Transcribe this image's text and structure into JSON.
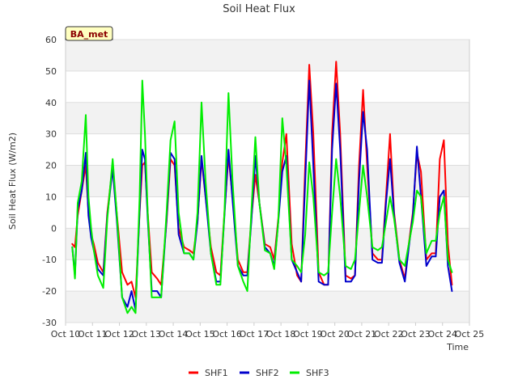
{
  "chart_data": {
    "type": "line",
    "title": "Soil Heat Flux",
    "xlabel": "Time",
    "ylabel": "Soil Heat Flux (W/m2)",
    "site_label": "BA_met",
    "xlim": [
      10,
      25
    ],
    "ylim": [
      -30,
      60
    ],
    "x_ticks": [
      10,
      11,
      12,
      13,
      14,
      15,
      16,
      17,
      18,
      19,
      20,
      21,
      22,
      23,
      24,
      25
    ],
    "x_tick_labels": [
      "Oct 10",
      "Oct 11",
      "Oct 12",
      "Oct 13",
      "Oct 14",
      "Oct 15",
      "Oct 16",
      "Oct 17",
      "Oct 18",
      "Oct 19",
      "Oct 20",
      "Oct 21",
      "Oct 22",
      "Oct 23",
      "Oct 24",
      "Oct 25"
    ],
    "y_ticks": [
      -30,
      -20,
      -10,
      0,
      10,
      20,
      30,
      40,
      50,
      60
    ],
    "legend_position": "bottom-center",
    "series": [
      {
        "name": "SHF1",
        "color": "#ff0000",
        "x": [
          10.25,
          10.35,
          10.45,
          10.6,
          10.75,
          10.85,
          10.95,
          11.05,
          11.2,
          11.4,
          11.55,
          11.75,
          11.9,
          12.1,
          12.3,
          12.45,
          12.6,
          12.75,
          12.85,
          12.95,
          13.05,
          13.2,
          13.4,
          13.55,
          13.75,
          13.9,
          14.05,
          14.2,
          14.4,
          14.6,
          14.75,
          14.9,
          15.05,
          15.2,
          15.4,
          15.6,
          15.75,
          15.9,
          16.05,
          16.2,
          16.4,
          16.6,
          16.75,
          16.9,
          17.05,
          17.2,
          17.4,
          17.6,
          17.75,
          17.9,
          18.05,
          18.2,
          18.4,
          18.6,
          18.75,
          18.9,
          19.05,
          19.2,
          19.4,
          19.6,
          19.75,
          19.9,
          20.05,
          20.2,
          20.4,
          20.6,
          20.75,
          20.9,
          21.05,
          21.2,
          21.4,
          21.6,
          21.75,
          21.9,
          22.05,
          22.2,
          22.4,
          22.6,
          22.75,
          22.9,
          23.05,
          23.2,
          23.4,
          23.6,
          23.75,
          23.9,
          24.05,
          24.2,
          24.35
        ],
        "y": [
          -5,
          -6,
          4,
          12,
          20,
          5,
          -2,
          -5,
          -11,
          -14,
          5,
          20,
          5,
          -14,
          -18,
          -17,
          -22,
          5,
          20,
          21,
          5,
          -14,
          -16,
          -18,
          2,
          22,
          20,
          0,
          -6,
          -7,
          -8,
          2,
          22,
          10,
          -6,
          -14,
          -15,
          5,
          23,
          10,
          -10,
          -14,
          -14,
          3,
          17,
          8,
          -5,
          -6,
          -10,
          3,
          21,
          30,
          -5,
          -15,
          -17,
          20,
          52,
          30,
          -14,
          -18,
          -18,
          30,
          53,
          30,
          -15,
          -16,
          -15,
          20,
          44,
          20,
          -8,
          -10,
          -10,
          10,
          30,
          5,
          -10,
          -16,
          -5,
          5,
          24,
          18,
          -10,
          -8,
          -8,
          22,
          28,
          -5,
          -18
        ]
      },
      {
        "name": "SHF2",
        "color": "#0000cc",
        "x": [
          10.25,
          10.35,
          10.45,
          10.6,
          10.75,
          10.85,
          10.95,
          11.05,
          11.2,
          11.4,
          11.55,
          11.75,
          11.9,
          12.1,
          12.3,
          12.45,
          12.6,
          12.75,
          12.85,
          12.95,
          13.05,
          13.2,
          13.4,
          13.55,
          13.75,
          13.9,
          14.05,
          14.2,
          14.4,
          14.6,
          14.75,
          14.9,
          15.05,
          15.2,
          15.4,
          15.6,
          15.75,
          15.9,
          16.05,
          16.2,
          16.4,
          16.6,
          16.75,
          16.9,
          17.05,
          17.2,
          17.4,
          17.6,
          17.75,
          17.9,
          18.05,
          18.2,
          18.4,
          18.6,
          18.75,
          18.9,
          19.05,
          19.2,
          19.4,
          19.6,
          19.75,
          19.9,
          20.05,
          20.2,
          20.4,
          20.6,
          20.75,
          20.9,
          21.05,
          21.2,
          21.4,
          21.6,
          21.75,
          21.9,
          22.05,
          22.2,
          22.4,
          22.6,
          22.75,
          22.9,
          23.05,
          23.2,
          23.4,
          23.6,
          23.75,
          23.9,
          24.05,
          24.2,
          24.35
        ],
        "y": [
          -6,
          -15,
          6,
          12,
          24,
          4,
          -3,
          -7,
          -13,
          -15,
          4,
          19,
          3,
          -22,
          -25,
          -20,
          -26,
          6,
          25,
          22,
          3,
          -20,
          -20,
          -22,
          3,
          24,
          22,
          -2,
          -8,
          -8,
          -10,
          2,
          23,
          10,
          -8,
          -17,
          -17,
          4,
          25,
          9,
          -12,
          -15,
          -15,
          2,
          23,
          8,
          -6,
          -8,
          -12,
          2,
          18,
          23,
          -10,
          -14,
          -17,
          15,
          47,
          20,
          -17,
          -18,
          -18,
          25,
          46,
          25,
          -17,
          -17,
          -15,
          15,
          37,
          25,
          -10,
          -11,
          -11,
          8,
          22,
          4,
          -11,
          -17,
          -6,
          4,
          26,
          10,
          -12,
          -9,
          -9,
          10,
          12,
          -12,
          -20
        ]
      },
      {
        "name": "SHF3",
        "color": "#00ee00",
        "x": [
          10.25,
          10.35,
          10.45,
          10.6,
          10.75,
          10.85,
          10.95,
          11.05,
          11.2,
          11.4,
          11.55,
          11.75,
          11.9,
          12.1,
          12.3,
          12.45,
          12.6,
          12.75,
          12.85,
          12.95,
          13.05,
          13.2,
          13.4,
          13.55,
          13.75,
          13.9,
          14.05,
          14.2,
          14.4,
          14.6,
          14.75,
          14.9,
          15.05,
          15.2,
          15.4,
          15.6,
          15.75,
          15.9,
          16.05,
          16.2,
          16.4,
          16.6,
          16.75,
          16.9,
          17.05,
          17.2,
          17.4,
          17.6,
          17.75,
          17.9,
          18.05,
          18.2,
          18.4,
          18.6,
          18.75,
          18.9,
          19.05,
          19.2,
          19.4,
          19.6,
          19.75,
          19.9,
          20.05,
          20.2,
          20.4,
          20.6,
          20.75,
          20.9,
          21.05,
          21.2,
          21.4,
          21.6,
          21.75,
          21.9,
          22.05,
          22.2,
          22.4,
          22.6,
          22.75,
          22.9,
          23.05,
          23.2,
          23.4,
          23.6,
          23.75,
          23.9,
          24.05,
          24.2,
          24.35
        ],
        "y": [
          -6,
          -16,
          8,
          15,
          36,
          10,
          0,
          -7,
          -15,
          -19,
          3,
          22,
          5,
          -22,
          -27,
          -25,
          -27,
          10,
          47,
          30,
          5,
          -22,
          -22,
          -22,
          5,
          28,
          34,
          5,
          -8,
          -8,
          -10,
          5,
          40,
          15,
          -8,
          -18,
          -18,
          5,
          43,
          15,
          -12,
          -17,
          -20,
          5,
          29,
          8,
          -7,
          -8,
          -13,
          2,
          35,
          20,
          -10,
          -12,
          -14,
          -2,
          21,
          10,
          -14,
          -15,
          -14,
          5,
          22,
          10,
          -12,
          -13,
          -10,
          5,
          20,
          10,
          -6,
          -7,
          -6,
          2,
          10,
          3,
          -10,
          -12,
          -5,
          2,
          12,
          10,
          -8,
          -4,
          -4,
          5,
          10,
          -10,
          -14
        ]
      }
    ]
  }
}
